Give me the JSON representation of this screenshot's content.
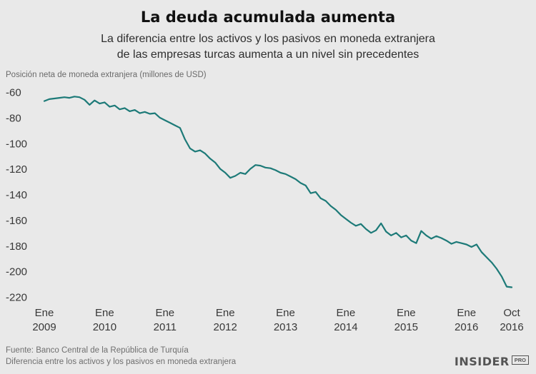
{
  "header": {
    "title": "La deuda acumulada aumenta",
    "subtitle_line1": "La diferencia entre los activos y los pasivos en moneda extranjera",
    "subtitle_line2": "de las empresas turcas aumenta a un nivel sin precedentes"
  },
  "chart_data": {
    "type": "line",
    "title": "La deuda acumulada aumenta",
    "ylabel": "Posición neta de moneda extranjera (millones de USD)",
    "line_color": "#1d7a78",
    "background_color": "#e9e9e9",
    "ylim": [
      -225,
      -58
    ],
    "grid": false,
    "legend": false,
    "y_ticks": [
      -60,
      -80,
      -100,
      -120,
      -140,
      -160,
      -180,
      -200,
      -220
    ],
    "x_ticks": [
      {
        "month_index": 0,
        "line1": "Ene",
        "line2": "2009"
      },
      {
        "month_index": 12,
        "line1": "Ene",
        "line2": "2010"
      },
      {
        "month_index": 24,
        "line1": "Ene",
        "line2": "2011"
      },
      {
        "month_index": 36,
        "line1": "Ene",
        "line2": "2012"
      },
      {
        "month_index": 48,
        "line1": "Ene",
        "line2": "2013"
      },
      {
        "month_index": 60,
        "line1": "Ene",
        "line2": "2014"
      },
      {
        "month_index": 72,
        "line1": "Ene",
        "line2": "2015"
      },
      {
        "month_index": 84,
        "line1": "Ene",
        "line2": "2016"
      },
      {
        "month_index": 93,
        "line1": "Oct",
        "line2": "2016"
      }
    ],
    "x_start_label": "Ene 2009",
    "x_end_label": "Oct 2016",
    "values": [
      -67,
      -65.5,
      -65,
      -64.5,
      -64,
      -64.5,
      -63.5,
      -64,
      -66,
      -70,
      -66.5,
      -69,
      -68,
      -71.5,
      -70.5,
      -73.5,
      -72.5,
      -75,
      -74,
      -76.5,
      -75.5,
      -77,
      -76.5,
      -80,
      -82,
      -84,
      -86,
      -88,
      -97,
      -104,
      -106.5,
      -105.5,
      -108,
      -112,
      -115,
      -120,
      -123,
      -127,
      -125.5,
      -123,
      -124,
      -120,
      -117,
      -117.5,
      -119,
      -119.5,
      -121,
      -123,
      -124,
      -126,
      -128,
      -131,
      -133,
      -139,
      -138,
      -143,
      -145,
      -149,
      -152,
      -156,
      -159,
      -162,
      -164.5,
      -163,
      -167,
      -170,
      -168,
      -162.5,
      -169,
      -172,
      -170,
      -173.5,
      -172,
      -176,
      -178,
      -168.5,
      -172,
      -174.5,
      -172.5,
      -174,
      -176,
      -178.5,
      -177,
      -178,
      -179,
      -181,
      -179,
      -185,
      -189,
      -193,
      -198,
      -204,
      -212,
      -212.5
    ]
  },
  "footer": {
    "source": "Fuente: Banco Central de la República de Turquía",
    "description": "Diferencia entre los activos y los pasivos en moneda extranjera",
    "logo_main": "INSIDER",
    "logo_sub": "PRO"
  }
}
